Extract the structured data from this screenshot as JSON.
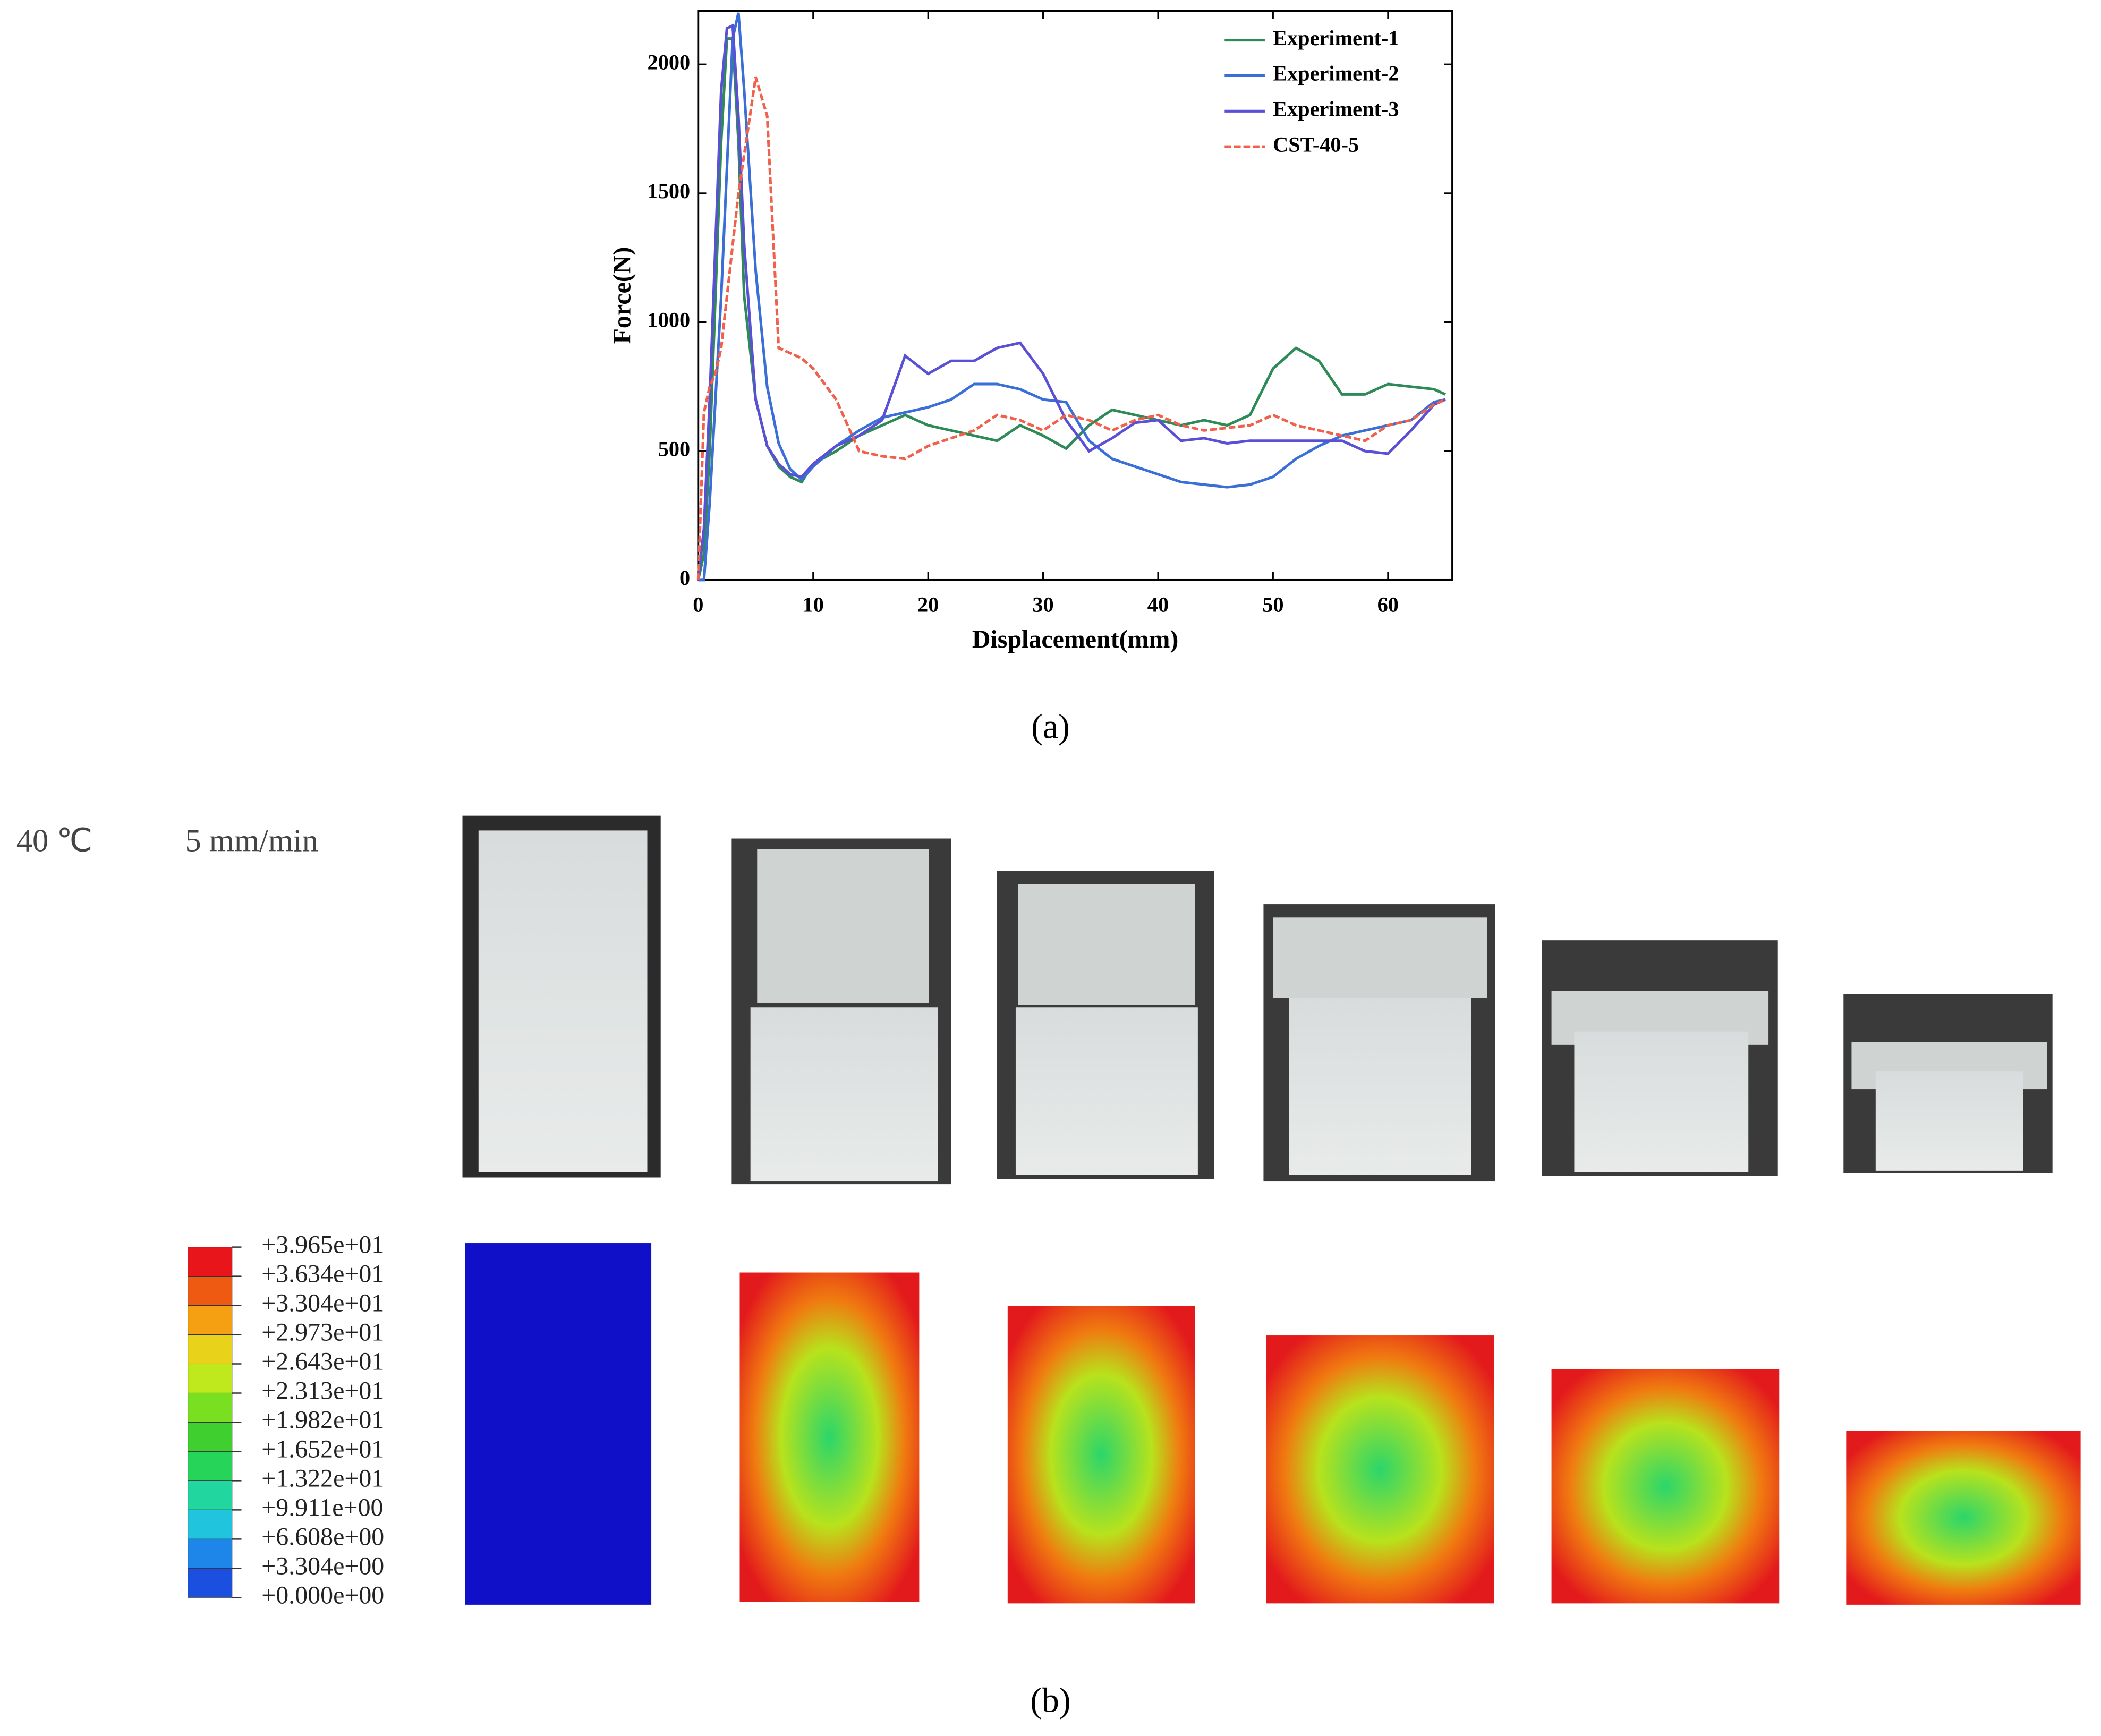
{
  "chart_data": {
    "type": "line",
    "x_label": "Displacement(mm)",
    "y_label": "Force(N)",
    "x": [
      0,
      0.5,
      1,
      1.5,
      2,
      2.5,
      3,
      3.5,
      4,
      5,
      6,
      7,
      8,
      9,
      10,
      12,
      14,
      16,
      18,
      20,
      22,
      24,
      26,
      28,
      30,
      32,
      34,
      36,
      38,
      40,
      42,
      44,
      46,
      48,
      50,
      52,
      54,
      56,
      58,
      60,
      62,
      64,
      65
    ],
    "series": [
      {
        "name": "Experiment-1",
        "color": "#2e8b57",
        "dash": false,
        "values": [
          0,
          100,
          500,
          1100,
          1700,
          2100,
          2100,
          1700,
          1100,
          700,
          520,
          440,
          400,
          380,
          450,
          500,
          560,
          600,
          640,
          600,
          580,
          560,
          540,
          600,
          560,
          510,
          600,
          660,
          640,
          620,
          600,
          620,
          600,
          640,
          820,
          900,
          850,
          720,
          720,
          760,
          750,
          740,
          720
        ]
      },
      {
        "name": "Experiment-2",
        "color": "#3a6fd8",
        "dash": false,
        "values": [
          0,
          0,
          300,
          700,
          1100,
          1600,
          2100,
          2200,
          1900,
          1200,
          750,
          530,
          430,
          390,
          440,
          520,
          580,
          630,
          650,
          670,
          700,
          760,
          760,
          740,
          700,
          690,
          540,
          470,
          440,
          410,
          380,
          370,
          360,
          370,
          400,
          470,
          520,
          560,
          580,
          600,
          620,
          690,
          700
        ]
      },
      {
        "name": "Experiment-3",
        "color": "#5a50d6",
        "dash": false,
        "values": [
          0,
          200,
          700,
          1300,
          1900,
          2140,
          2150,
          1800,
          1300,
          700,
          520,
          450,
          410,
          400,
          450,
          520,
          560,
          620,
          870,
          800,
          850,
          850,
          900,
          920,
          800,
          620,
          500,
          550,
          610,
          620,
          540,
          550,
          530,
          540,
          540,
          540,
          540,
          540,
          500,
          490,
          580,
          680,
          700
        ]
      },
      {
        "name": "CST-40-5",
        "color": "#f0604a",
        "dash": true,
        "values": [
          0,
          650,
          750,
          800,
          900,
          1100,
          1300,
          1500,
          1650,
          1950,
          1800,
          900,
          880,
          860,
          820,
          700,
          500,
          480,
          470,
          520,
          550,
          580,
          640,
          620,
          580,
          640,
          620,
          580,
          620,
          640,
          600,
          580,
          590,
          600,
          640,
          600,
          580,
          560,
          540,
          600,
          620,
          680,
          700
        ]
      }
    ],
    "xlim": [
      0,
      65.6
    ],
    "ylim": [
      0,
      2208
    ],
    "xticks": [
      0,
      10,
      20,
      30,
      40,
      50,
      60
    ],
    "yticks": [
      0,
      500,
      1000,
      1500,
      2000
    ],
    "grid": false,
    "legend": "top-right"
  },
  "panel_labels": [
    "(a)",
    "(b)"
  ],
  "conditions": {
    "temperature": "40 ℃",
    "rate": "5 mm/min"
  },
  "contour_legend": {
    "labels": [
      "+3.965e+01",
      "+3.634e+01",
      "+3.304e+01",
      "+2.973e+01",
      "+2.643e+01",
      "+2.313e+01",
      "+1.982e+01",
      "+1.652e+01",
      "+1.322e+01",
      "+9.911e+00",
      "+6.608e+00",
      "+3.304e+00",
      "+0.000e+00"
    ],
    "colors": [
      "#e8161b",
      "#ee5a12",
      "#f5a012",
      "#e8d21a",
      "#bfe81d",
      "#78e021",
      "#3fcf2e",
      "#26d45a",
      "#22d6a0",
      "#20c4dc",
      "#1e86e8",
      "#1a4fe0",
      "#1010d8"
    ]
  }
}
